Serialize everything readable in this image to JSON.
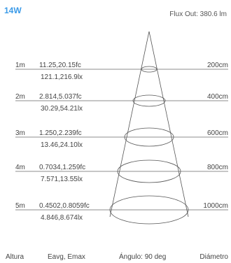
{
  "title": "14W",
  "flux": "Flux Out: 380.6 lm",
  "accent_color": "#3c9be8",
  "rows": [
    {
      "distance": "1m",
      "fc": "11.25,20.15fc",
      "lx": "121.1,216.9lx",
      "diameter": "200cm"
    },
    {
      "distance": "2m",
      "fc": "2.814,5.037fc",
      "lx": "30.29,54.21lx",
      "diameter": "400cm"
    },
    {
      "distance": "3m",
      "fc": "1.250,2.239fc",
      "lx": "13.46,24.10lx",
      "diameter": "600cm"
    },
    {
      "distance": "4m",
      "fc": "0.7034,1.259fc",
      "lx": "7.571,13.55lx",
      "diameter": "800cm"
    },
    {
      "distance": "5m",
      "fc": "0.4502,0.8059fc",
      "lx": "4.846,8.674lx",
      "diameter": "1000cm"
    }
  ],
  "footer": {
    "height": "Altura",
    "illuminance": "Eavg, Emax",
    "angle": "Ángulo: 90 deg",
    "diameter": "Diámetro"
  },
  "chart_data": {
    "type": "table",
    "title": "14W",
    "columns": [
      "Altura",
      "Eavg, Emax",
      "Diámetro"
    ],
    "rows": [
      [
        "1m",
        "11.25,20.15fc",
        "121.1,216.9lx",
        "200cm"
      ],
      [
        "2m",
        "2.814,5.037fc",
        "30.29,54.21lx",
        "400cm"
      ],
      [
        "3m",
        "1.250,2.239fc",
        "13.46,24.10lx",
        "600cm"
      ],
      [
        "4m",
        "0.7034,1.259fc",
        "7.571,13.55lx",
        "800cm"
      ],
      [
        "5m",
        "0.4502,0.8059fc",
        "4.846,8.674lx",
        "1000cm"
      ]
    ]
  }
}
